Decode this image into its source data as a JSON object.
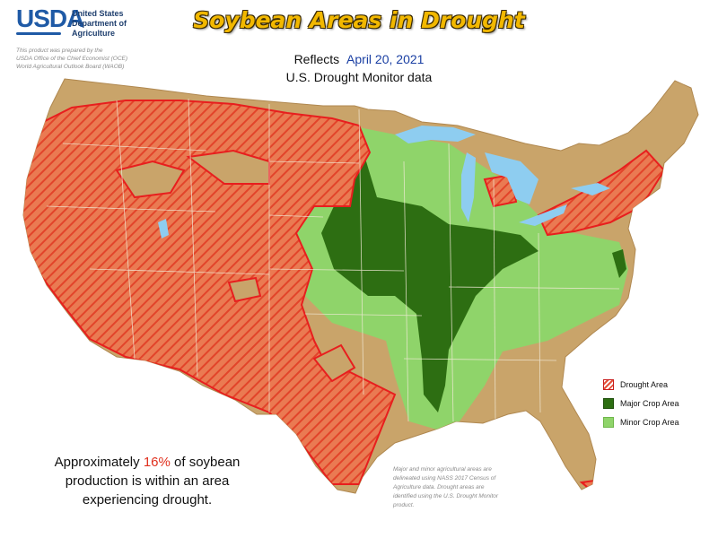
{
  "header": {
    "agency_logo": "USDA",
    "agency_name_lines": [
      "United States",
      "Department of",
      "Agriculture"
    ],
    "prepared_by_lines": [
      "This product was prepared by the",
      "USDA Office of the Chief Economist (OCE)",
      "World Agricultural Outlook Board (WAOB)"
    ],
    "title": "Soybean Areas in Drought",
    "reflects_label": "Reflects",
    "reflects_date": "April 20, 2021",
    "data_source": "U.S. Drought Monitor data"
  },
  "legend": {
    "items": [
      {
        "label": "Drought Area",
        "type": "drought"
      },
      {
        "label": "Major Crop Area",
        "type": "major"
      },
      {
        "label": "Minor Crop Area",
        "type": "minor"
      }
    ]
  },
  "summary": {
    "before": "Approximately ",
    "percent": "16%",
    "after_first_line": " of soybean",
    "line2": "production is within an area",
    "line3": "experiencing drought."
  },
  "footnote_lines": [
    "Major and minor agricultural areas are",
    "delineated using NASS 2017 Census of",
    "Agriculture data.  Drought areas are",
    "identified using the U.S. Drought Monitor",
    "product."
  ],
  "colors": {
    "land": "#c9a46a",
    "drought_hatch": "#e5533b",
    "drought_outline": "#e81e1e",
    "major_crop": "#2d6e12",
    "minor_crop": "#8fd46a",
    "water": "#8ecdf0",
    "title": "#f2b800",
    "date": "#1a3fa3",
    "usda_blue": "#1f5aa6"
  },
  "map_data": {
    "soybean_production_in_drought_percent": 16,
    "date": "April 20, 2021"
  }
}
